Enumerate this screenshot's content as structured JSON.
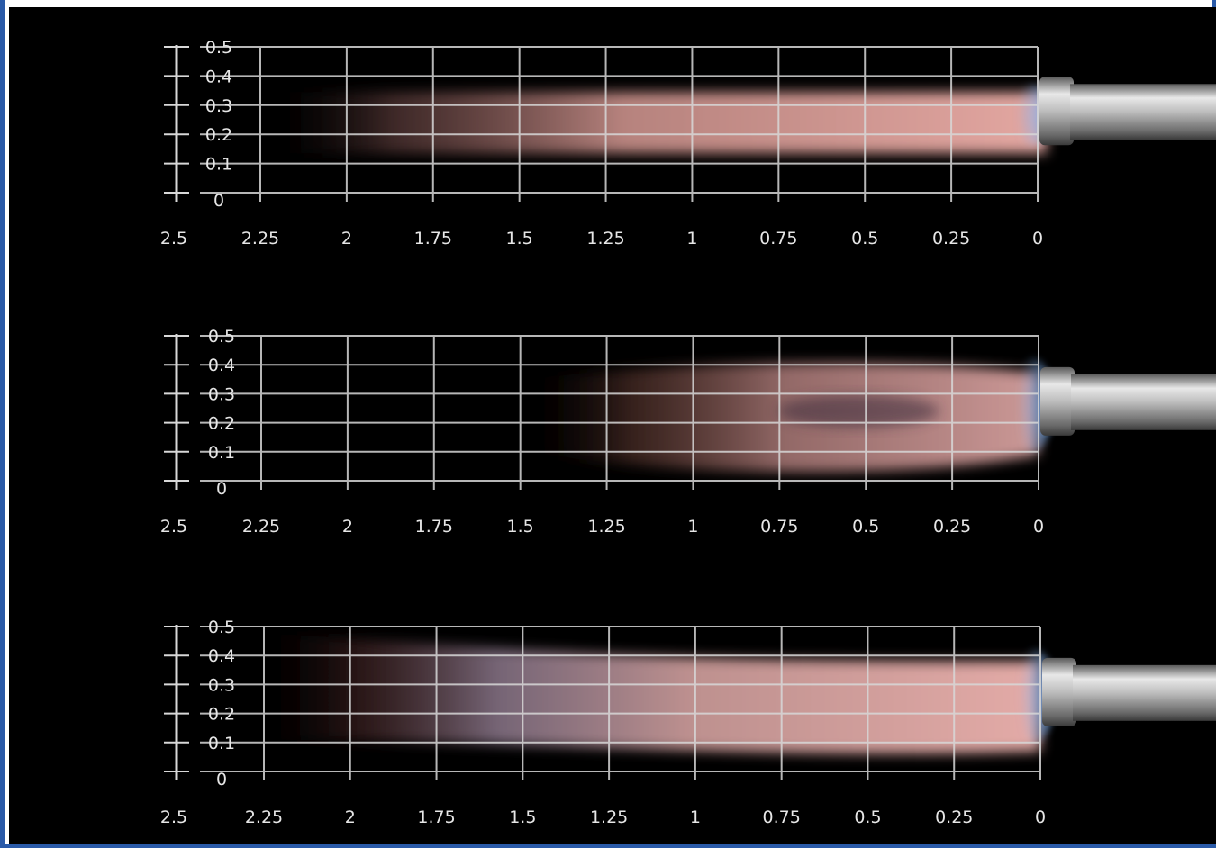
{
  "panels": [
    {
      "name": "panel-top",
      "flame": "narrow",
      "y_ticks": [
        "0.5",
        "0.4",
        "0.3",
        "0.2",
        "0.1",
        "0"
      ],
      "x_ticks": [
        "2.5",
        "2.25",
        "2",
        "1.75",
        "1.5",
        "1.25",
        "1",
        "0.75",
        "0.5",
        "0.25",
        "0"
      ]
    },
    {
      "name": "panel-middle",
      "flame": "wide-short",
      "y_ticks": [
        "0.5",
        "0.4",
        "0.3",
        "0.2",
        "0.1",
        "0"
      ],
      "x_ticks": [
        "2.5",
        "2.25",
        "2",
        "1.75",
        "1.5",
        "1.25",
        "1",
        "0.75",
        "0.5",
        "0.25",
        "0"
      ]
    },
    {
      "name": "panel-bottom",
      "flame": "wide-long",
      "y_ticks": [
        "0.5",
        "0.4",
        "0.3",
        "0.2",
        "0.1",
        "0"
      ],
      "x_ticks": [
        "2.5",
        "2.25",
        "2",
        "1.75",
        "1.5",
        "1.25",
        "1",
        "0.75",
        "0.5",
        "0.25",
        "0"
      ]
    }
  ],
  "colors": {
    "background": "#000000",
    "grid": "#d8d8d8",
    "flame_core": "#e8a0a0",
    "flame_root": "#6aa8ff",
    "nozzle": "#c8c8c8",
    "frame_border": "#2a5aa8"
  }
}
